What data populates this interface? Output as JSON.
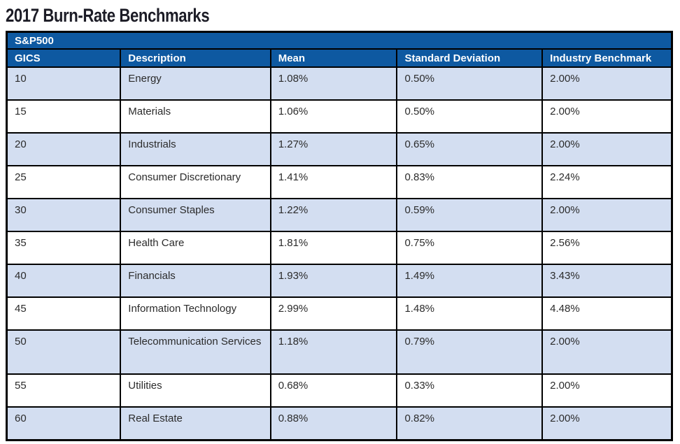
{
  "page": {
    "title": "2017 Burn-Rate Benchmarks"
  },
  "table": {
    "group_header": "S&P500",
    "columns": [
      {
        "key": "gics",
        "label": "GICS"
      },
      {
        "key": "description",
        "label": "Description"
      },
      {
        "key": "mean",
        "label": "Mean"
      },
      {
        "key": "std_dev",
        "label": "Standard Deviation"
      },
      {
        "key": "benchmark",
        "label": "Industry Benchmark"
      }
    ],
    "rows": [
      {
        "gics": "10",
        "description": "Energy",
        "mean": "1.08%",
        "std_dev": "0.50%",
        "benchmark": "2.00%"
      },
      {
        "gics": "15",
        "description": "Materials",
        "mean": "1.06%",
        "std_dev": "0.50%",
        "benchmark": "2.00%"
      },
      {
        "gics": "20",
        "description": "Industrials",
        "mean": "1.27%",
        "std_dev": "0.65%",
        "benchmark": "2.00%"
      },
      {
        "gics": "25",
        "description": "Consumer Discretionary",
        "mean": "1.41%",
        "std_dev": "0.83%",
        "benchmark": "2.24%"
      },
      {
        "gics": "30",
        "description": "Consumer Staples",
        "mean": "1.22%",
        "std_dev": "0.59%",
        "benchmark": "2.00%"
      },
      {
        "gics": "35",
        "description": "Health Care",
        "mean": "1.81%",
        "std_dev": "0.75%",
        "benchmark": "2.56%"
      },
      {
        "gics": "40",
        "description": "Financials",
        "mean": "1.93%",
        "std_dev": "1.49%",
        "benchmark": "3.43%"
      },
      {
        "gics": "45",
        "description": "Information Technology",
        "mean": "2.99%",
        "std_dev": "1.48%",
        "benchmark": "4.48%"
      },
      {
        "gics": "50",
        "description": "Telecommunication Services",
        "mean": "1.18%",
        "std_dev": "0.79%",
        "benchmark": "2.00%"
      },
      {
        "gics": "55",
        "description": "Utilities",
        "mean": "0.68%",
        "std_dev": "0.33%",
        "benchmark": "2.00%"
      },
      {
        "gics": "60",
        "description": "Real Estate",
        "mean": "0.88%",
        "std_dev": "0.82%",
        "benchmark": "2.00%"
      }
    ]
  },
  "colors": {
    "header_blue": "#0E59A1",
    "row_shaded": "#D3DEF1",
    "row_plain": "#FFFFFF",
    "border": "#000000",
    "title_text": "#1C1C26",
    "header_text": "#FFFFFF",
    "body_text": "#2B2B2B"
  }
}
